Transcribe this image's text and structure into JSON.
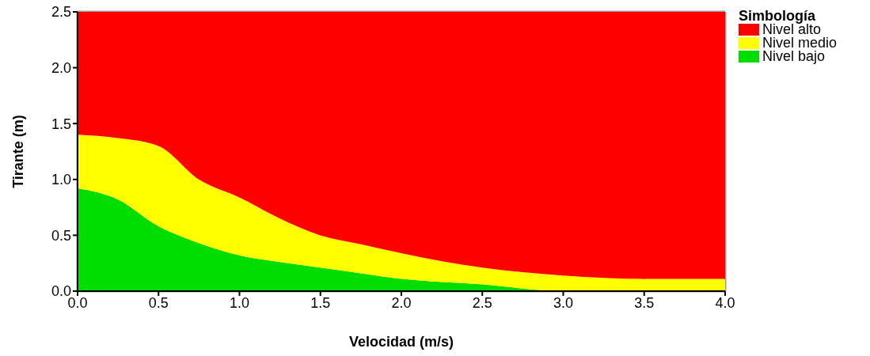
{
  "chart_data": {
    "type": "area",
    "stacked": true,
    "xlabel": "Velocidad (m/s)",
    "ylabel": "Tirante (m)",
    "legend_title": "Simbología",
    "legend": "top right",
    "grid": true,
    "x": [
      0,
      0.25,
      0.5,
      0.75,
      1.0,
      1.25,
      1.5,
      1.75,
      2.0,
      2.5,
      3.0,
      3.5,
      4.0
    ],
    "series": [
      {
        "name": "Nivel bajo",
        "color": "#00dd00",
        "values": [
          0.92,
          0.82,
          0.58,
          0.43,
          0.32,
          0.26,
          0.21,
          0.16,
          0.11,
          0.06,
          0,
          0,
          0
        ]
      },
      {
        "name": "Nivel medio",
        "color": "#ffff00",
        "values": [
          0.48,
          0.55,
          0.72,
          0.57,
          0.52,
          0.39,
          0.29,
          0.26,
          0.23,
          0.15,
          0.14,
          0.11,
          0.11
        ]
      },
      {
        "name": "Nivel alto",
        "color": "#ff0000",
        "values": [
          1.1,
          1.13,
          1.2,
          1.5,
          1.66,
          1.85,
          2.0,
          2.08,
          2.16,
          2.29,
          2.36,
          2.39,
          2.39
        ]
      }
    ],
    "xlim": [
      0,
      4
    ],
    "xticks": [
      {
        "value": 0,
        "label": "0.0"
      },
      {
        "value": 0.5,
        "label": "0.5"
      },
      {
        "value": 1,
        "label": "1.0"
      },
      {
        "value": 1.5,
        "label": "1.5"
      },
      {
        "value": 2,
        "label": "2.0"
      },
      {
        "value": 2.5,
        "label": "2.5"
      },
      {
        "value": 3,
        "label": "3.0"
      },
      {
        "value": 3.5,
        "label": "3.5"
      },
      {
        "value": 4,
        "label": "4.0"
      }
    ],
    "ylim": [
      0,
      2.5
    ],
    "yticks": [
      {
        "value": 0,
        "label": "0.0"
      },
      {
        "value": 0.5,
        "label": "0.5"
      },
      {
        "value": 1,
        "label": "1.0"
      },
      {
        "value": 1.5,
        "label": "1.5"
      },
      {
        "value": 2,
        "label": "2.0"
      },
      {
        "value": 2.5,
        "label": "2.5"
      }
    ]
  }
}
